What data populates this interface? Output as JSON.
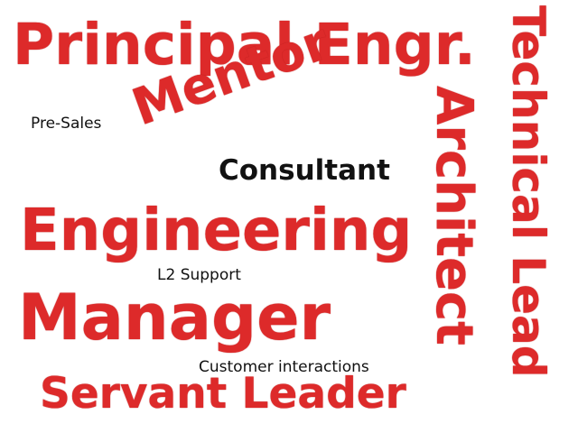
{
  "cloud": {
    "words": {
      "principal": "Principal Engr.",
      "mentor": "Mentor",
      "presales": "Pre-Sales",
      "consultant": "Consultant",
      "engineering": "Engineering",
      "l2_support": "L2 Support",
      "manager": "Manager",
      "customer_interactions": "Customer interactions",
      "servant_leader": "Servant Leader",
      "architect": "Architect",
      "technical_lead": "Technical Lead"
    },
    "colors": {
      "accent": "#dd2a2a",
      "text": "#111111",
      "background": "#ffffff"
    }
  }
}
